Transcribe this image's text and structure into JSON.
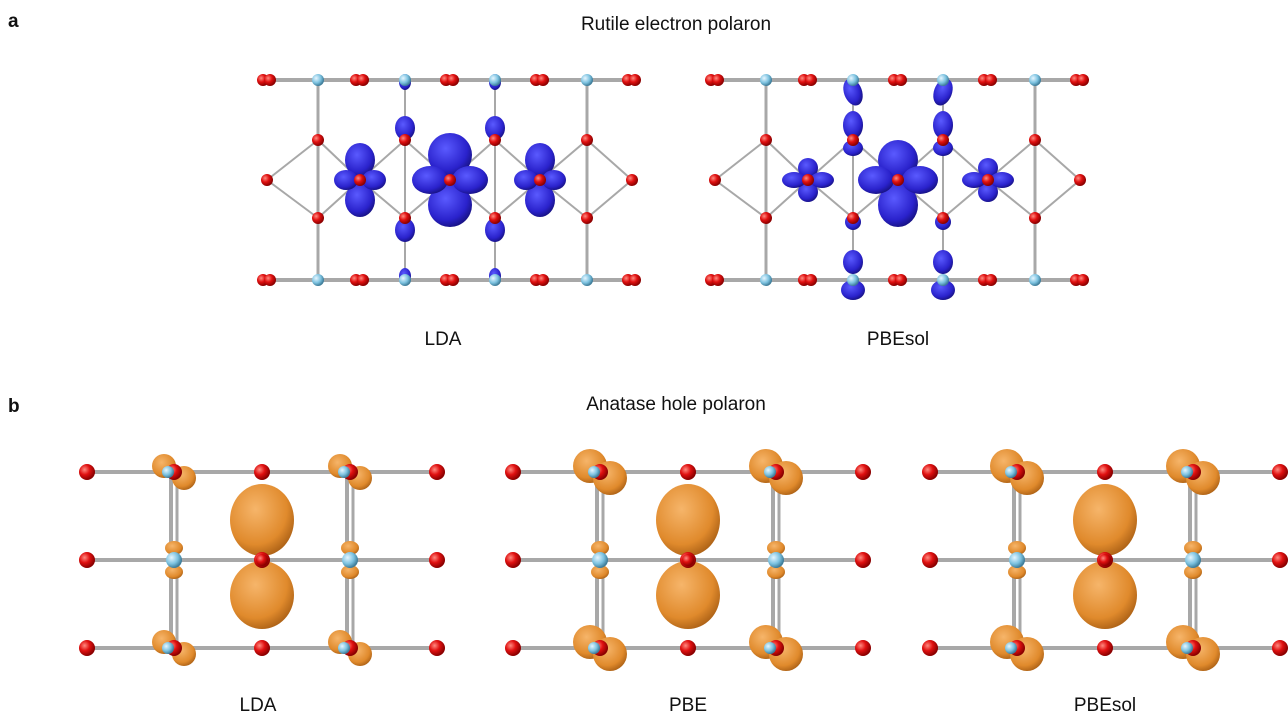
{
  "panels": [
    {
      "label": "a",
      "title": "Rutile electron polaron",
      "subpanels": [
        "LDA",
        "PBEsol"
      ]
    },
    {
      "label": "b",
      "title": "Anatase hole polaron",
      "subpanels": [
        "LDA",
        "PBE",
        "PBEsol"
      ]
    }
  ]
}
